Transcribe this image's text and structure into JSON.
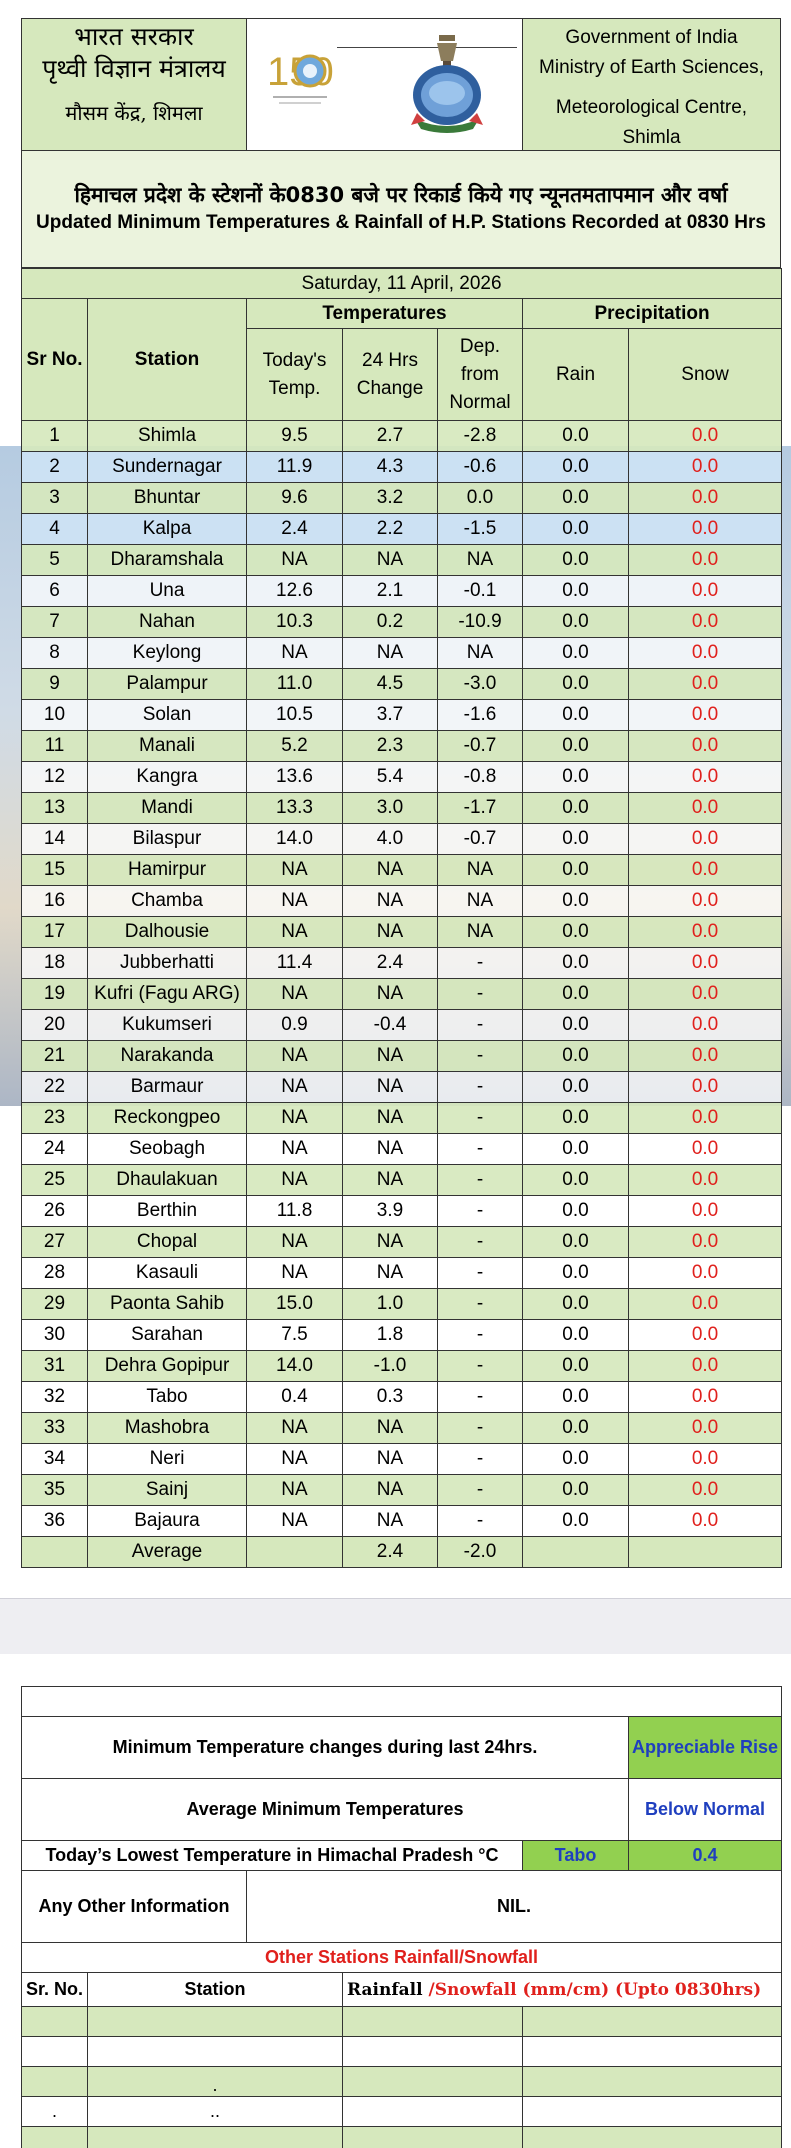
{
  "header": {
    "left_line1": "भारत सरकार",
    "left_line2": "पृथ्वी विज्ञान मंत्रालय",
    "left_line3": "मौसम केंद्र, शिमला",
    "logo_text": "150",
    "right_line1": "Government of India",
    "right_line2": "Ministry of Earth Sciences,",
    "right_line3": "Meteorological Centre,",
    "right_line4": "Shimla"
  },
  "title": {
    "hindi": "हिमाचल प्रदेश के स्टेशनों के0830 बजे पर रिकार्ड किये गए न्यूनतमतापमान और वर्षा",
    "english": "Updated Minimum Temperatures & Rainfall of H.P. Stations Recorded at 0830 Hrs"
  },
  "date": "Saturday, 11 April, 2026",
  "columns": {
    "sr": "Sr No.",
    "station": "Station",
    "temperatures": "Temperatures",
    "precipitation": "Precipitation",
    "today_l1": "Today's",
    "today_l2": "Temp.",
    "change_l1": "24 Hrs",
    "change_l2": "Change",
    "dep_l1": "Dep.",
    "dep_l2": "from",
    "dep_l3": "Normal",
    "rain": "Rain",
    "snow": "Snow"
  },
  "rows": [
    {
      "sr": "1",
      "station": "Shimla",
      "temp": "9.5",
      "change": "2.7",
      "dep": "-2.8",
      "rain": "0.0",
      "snow": "0.0"
    },
    {
      "sr": "2",
      "station": "Sundernagar",
      "temp": "11.9",
      "change": "4.3",
      "dep": "-0.6",
      "rain": "0.0",
      "snow": "0.0"
    },
    {
      "sr": "3",
      "station": "Bhuntar",
      "temp": "9.6",
      "change": "3.2",
      "dep": "0.0",
      "rain": "0.0",
      "snow": "0.0"
    },
    {
      "sr": "4",
      "station": "Kalpa",
      "temp": "2.4",
      "change": "2.2",
      "dep": "-1.5",
      "rain": "0.0",
      "snow": "0.0"
    },
    {
      "sr": "5",
      "station": "Dharamshala",
      "temp": "NA",
      "change": "NA",
      "dep": "NA",
      "rain": "0.0",
      "snow": "0.0"
    },
    {
      "sr": "6",
      "station": "Una",
      "temp": "12.6",
      "change": "2.1",
      "dep": "-0.1",
      "rain": "0.0",
      "snow": "0.0"
    },
    {
      "sr": "7",
      "station": "Nahan",
      "temp": "10.3",
      "change": "0.2",
      "dep": "-10.9",
      "rain": "0.0",
      "snow": "0.0"
    },
    {
      "sr": "8",
      "station": "Keylong",
      "temp": "NA",
      "change": "NA",
      "dep": "NA",
      "rain": "0.0",
      "snow": "0.0"
    },
    {
      "sr": "9",
      "station": "Palampur",
      "temp": "11.0",
      "change": "4.5",
      "dep": "-3.0",
      "rain": "0.0",
      "snow": "0.0"
    },
    {
      "sr": "10",
      "station": "Solan",
      "temp": "10.5",
      "change": "3.7",
      "dep": "-1.6",
      "rain": "0.0",
      "snow": "0.0"
    },
    {
      "sr": "11",
      "station": "Manali",
      "temp": "5.2",
      "change": "2.3",
      "dep": "-0.7",
      "rain": "0.0",
      "snow": "0.0"
    },
    {
      "sr": "12",
      "station": "Kangra",
      "temp": "13.6",
      "change": "5.4",
      "dep": "-0.8",
      "rain": "0.0",
      "snow": "0.0"
    },
    {
      "sr": "13",
      "station": "Mandi",
      "temp": "13.3",
      "change": "3.0",
      "dep": "-1.7",
      "rain": "0.0",
      "snow": "0.0"
    },
    {
      "sr": "14",
      "station": "Bilaspur",
      "temp": "14.0",
      "change": "4.0",
      "dep": "-0.7",
      "rain": "0.0",
      "snow": "0.0"
    },
    {
      "sr": "15",
      "station": "Hamirpur",
      "temp": "NA",
      "change": "NA",
      "dep": "NA",
      "rain": "0.0",
      "snow": "0.0"
    },
    {
      "sr": "16",
      "station": "Chamba",
      "temp": "NA",
      "change": "NA",
      "dep": "NA",
      "rain": "0.0",
      "snow": "0.0"
    },
    {
      "sr": "17",
      "station": "Dalhousie",
      "temp": "NA",
      "change": "NA",
      "dep": "NA",
      "rain": "0.0",
      "snow": "0.0"
    },
    {
      "sr": "18",
      "station": "Jubberhatti",
      "temp": "11.4",
      "change": "2.4",
      "dep": "-",
      "rain": "0.0",
      "snow": "0.0"
    },
    {
      "sr": "19",
      "station": "Kufri (Fagu ARG)",
      "temp": "NA",
      "change": "NA",
      "dep": "-",
      "rain": "0.0",
      "snow": "0.0"
    },
    {
      "sr": "20",
      "station": "Kukumseri",
      "temp": "0.9",
      "change": "-0.4",
      "dep": "-",
      "rain": "0.0",
      "snow": "0.0"
    },
    {
      "sr": "21",
      "station": "Narakanda",
      "temp": "NA",
      "change": "NA",
      "dep": "-",
      "rain": "0.0",
      "snow": "0.0"
    },
    {
      "sr": "22",
      "station": "Barmaur",
      "temp": "NA",
      "change": "NA",
      "dep": "-",
      "rain": "0.0",
      "snow": "0.0"
    },
    {
      "sr": "23",
      "station": "Reckongpeo",
      "temp": "NA",
      "change": "NA",
      "dep": "-",
      "rain": "0.0",
      "snow": "0.0"
    },
    {
      "sr": "24",
      "station": "Seobagh",
      "temp": "NA",
      "change": "NA",
      "dep": "-",
      "rain": "0.0",
      "snow": "0.0"
    },
    {
      "sr": "25",
      "station": "Dhaulakuan",
      "temp": "NA",
      "change": "NA",
      "dep": "-",
      "rain": "0.0",
      "snow": "0.0"
    },
    {
      "sr": "26",
      "station": "Berthin",
      "temp": "11.8",
      "change": "3.9",
      "dep": "-",
      "rain": "0.0",
      "snow": "0.0"
    },
    {
      "sr": "27",
      "station": "Chopal",
      "temp": "NA",
      "change": "NA",
      "dep": "-",
      "rain": "0.0",
      "snow": "0.0"
    },
    {
      "sr": "28",
      "station": "Kasauli",
      "temp": "NA",
      "change": "NA",
      "dep": "-",
      "rain": "0.0",
      "snow": "0.0"
    },
    {
      "sr": "29",
      "station": "Paonta Sahib",
      "temp": "15.0",
      "change": "1.0",
      "dep": "-",
      "rain": "0.0",
      "snow": "0.0"
    },
    {
      "sr": "30",
      "station": "Sarahan",
      "temp": "7.5",
      "change": "1.8",
      "dep": "-",
      "rain": "0.0",
      "snow": "0.0"
    },
    {
      "sr": "31",
      "station": "Dehra Gopipur",
      "temp": "14.0",
      "change": "-1.0",
      "dep": "-",
      "rain": "0.0",
      "snow": "0.0"
    },
    {
      "sr": "32",
      "station": "Tabo",
      "temp": "0.4",
      "change": "0.3",
      "dep": "-",
      "rain": "0.0",
      "snow": "0.0"
    },
    {
      "sr": "33",
      "station": "Mashobra",
      "temp": "NA",
      "change": "NA",
      "dep": "-",
      "rain": "0.0",
      "snow": "0.0"
    },
    {
      "sr": "34",
      "station": "Neri",
      "temp": "NA",
      "change": "NA",
      "dep": "-",
      "rain": "0.0",
      "snow": "0.0"
    },
    {
      "sr": "35",
      "station": "Sainj",
      "temp": "NA",
      "change": "NA",
      "dep": "-",
      "rain": "0.0",
      "snow": "0.0"
    },
    {
      "sr": "36",
      "station": "Bajaura",
      "temp": "NA",
      "change": "NA",
      "dep": "-",
      "rain": "0.0",
      "snow": "0.0"
    }
  ],
  "average": {
    "label": "Average",
    "change": "2.4",
    "dep": "-2.0"
  },
  "summary": {
    "min_change_label": "Minimum Temperature changes during last 24hrs.",
    "min_change_value": "Appreciable Rise",
    "avg_min_label": "Average Minimum Temperatures",
    "avg_min_value": "Below Normal",
    "lowest_label": "Today’s Lowest Temperature in Himachal Pradesh °C",
    "lowest_station": "Tabo",
    "lowest_value": "0.4",
    "other_info_label": "Any Other Information",
    "other_info_value": "NIL."
  },
  "other_stations": {
    "title": "Other Stations Rainfall/Snowfall",
    "sr": "Sr. No.",
    "station": "Station",
    "rainfall_black": "Rainfall ",
    "rainfall_red": "/Snowfall  (mm/cm) (Upto 0830hrs)",
    "dot1": ".",
    "dot2": ".",
    "dot3": ".."
  },
  "colors": {
    "header_green": "#d6e8bd",
    "row_green": "#d6e8bd",
    "snow_red": "#e0201c",
    "accent_green": "#92d050",
    "accent_blue": "#1f3fbf"
  }
}
